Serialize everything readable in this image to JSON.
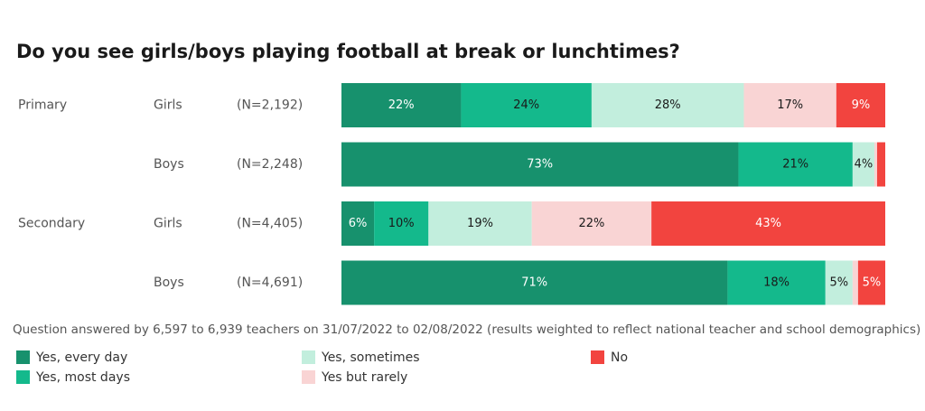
{
  "chart_data": {
    "type": "stacked-barh",
    "title": "Do you see girls/boys playing football at break or lunchtimes?",
    "groups": [
      "Primary",
      null,
      "Secondary",
      null
    ],
    "categories": [
      "Girls",
      "Boys",
      "Girls",
      "Boys"
    ],
    "n_labels": [
      "(N=2,192)",
      "(N=2,248)",
      "(N=4,405)",
      "(N=4,691)"
    ],
    "xlim": [
      0,
      100
    ],
    "series": [
      {
        "name": "Yes, every day",
        "color": "#17916d",
        "label_color": "#ffffff",
        "values": [
          22,
          73,
          6,
          71
        ],
        "value_labels": [
          "22%",
          "73%",
          "6%",
          "71%"
        ]
      },
      {
        "name": "Yes, most days",
        "color": "#14b98c",
        "label_color": "#1a1a1a",
        "values": [
          24,
          21,
          10,
          18
        ],
        "value_labels": [
          "24%",
          "21%",
          "10%",
          "18%"
        ]
      },
      {
        "name": "Yes, sometimes",
        "color": "#c2eedd",
        "label_color": "#1a1a1a",
        "values": [
          28,
          4,
          19,
          5
        ],
        "value_labels": [
          "28%",
          "4%",
          "19%",
          "5%"
        ]
      },
      {
        "name": "Yes but rarely",
        "color": "#f9d4d4",
        "label_color": "#1a1a1a",
        "values": [
          17,
          0.5,
          22,
          1
        ],
        "value_labels": [
          "17%",
          null,
          "22%",
          null
        ]
      },
      {
        "name": "No",
        "color": "#f2443f",
        "label_color": "#ffffff",
        "values": [
          9,
          1.5,
          43,
          5
        ],
        "value_labels": [
          "9%",
          null,
          "43%",
          "5%"
        ]
      }
    ],
    "footnote": "Question answered by 6,597 to 6,939 teachers on 31/07/2022 to 02/08/2022 (results weighted to reflect national teacher and school demographics)"
  }
}
